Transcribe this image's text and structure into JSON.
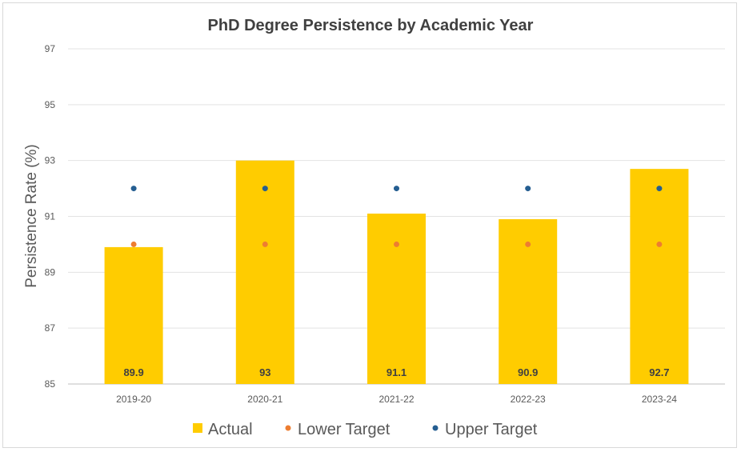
{
  "chart_data": {
    "type": "bar",
    "title": "PhD Degree Persistence by Academic Year",
    "xlabel": "",
    "ylabel": "Persistence Rate (%)",
    "ylim": [
      85,
      97
    ],
    "yticks": [
      85,
      87,
      89,
      91,
      93,
      95,
      97
    ],
    "grid": true,
    "legend_position": "bottom",
    "categories": [
      "2019-20",
      "2020-21",
      "2021-22",
      "2022-23",
      "2023-24"
    ],
    "series": [
      {
        "name": "Actual",
        "kind": "bar",
        "color": "#ffcc00",
        "values": [
          89.9,
          93,
          91.1,
          90.9,
          92.7
        ]
      },
      {
        "name": "Lower Target",
        "kind": "point",
        "color": "#ed7d31",
        "values": [
          90,
          90,
          90,
          90,
          90
        ]
      },
      {
        "name": "Upper Target",
        "kind": "point",
        "color": "#255e91",
        "values": [
          92,
          92,
          92,
          92,
          92
        ]
      }
    ],
    "data_labels": [
      "89.9",
      "93",
      "91.1",
      "90.9",
      "92.7"
    ]
  }
}
